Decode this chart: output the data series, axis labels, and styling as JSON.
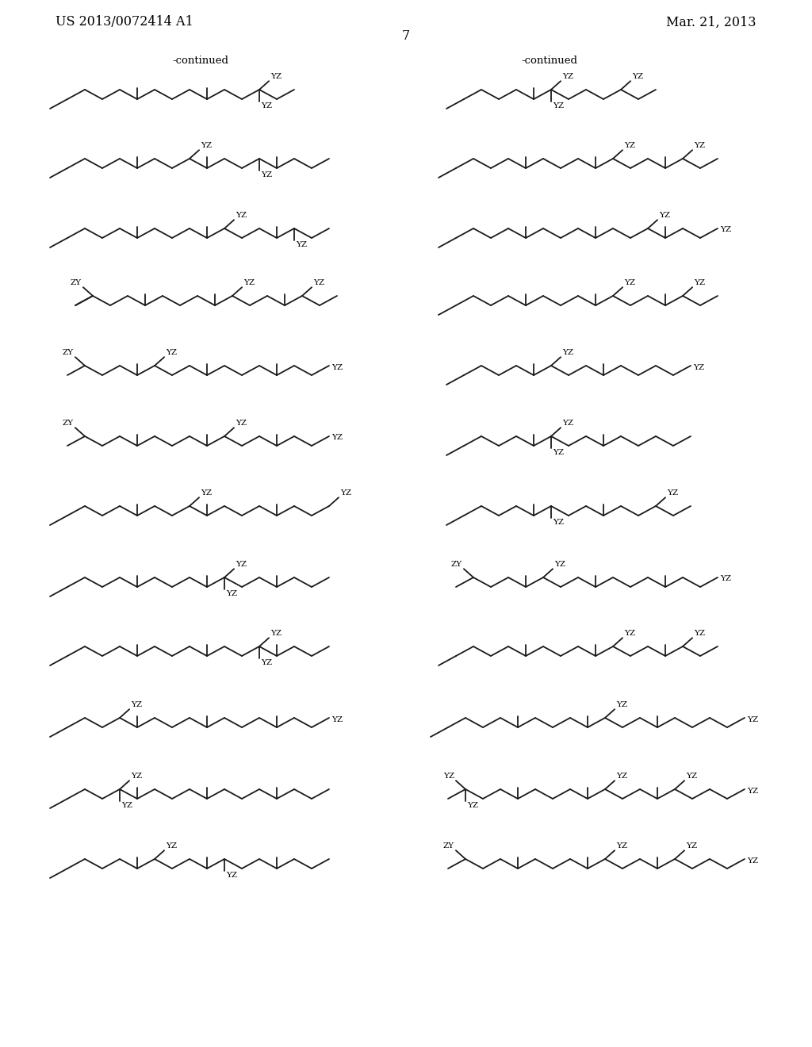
{
  "page_title_left": "US 2013/0072414 A1",
  "page_title_right": "Mar. 21, 2013",
  "page_number": "7",
  "continued_left": "-continued",
  "continued_right": "-continued",
  "background_color": "#ffffff",
  "line_color": "#1a1a1a",
  "line_width": 1.3,
  "font_family": "DejaVu Serif",
  "BL": 22,
  "BH": 12
}
